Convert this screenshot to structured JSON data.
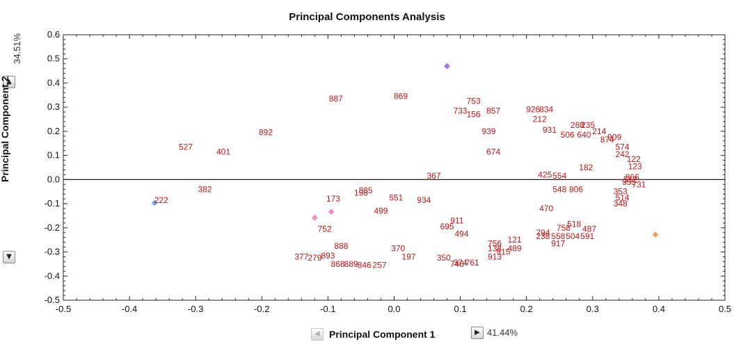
{
  "chart_data": {
    "type": "scatter",
    "title": "Principal Components Analysis",
    "xlabel": "Principal Component 1",
    "ylabel": "Principal Component 2",
    "x_variance": "41.44%",
    "y_variance": "34.51%",
    "xlim": [
      -0.5,
      0.5
    ],
    "ylim": [
      -0.5,
      0.6
    ],
    "xticks": [
      "-0.5",
      "-0.4",
      "-0.3",
      "-0.2",
      "-0.1",
      "0.0",
      "0.1",
      "0.2",
      "0.3",
      "0.4",
      "0.5"
    ],
    "yticks": [
      "0.6",
      "0.5",
      "0.4",
      "0.3",
      "0.2",
      "0.1",
      "0.0",
      "-0.1",
      "-0.2",
      "-0.3",
      "-0.4",
      "-0.5"
    ],
    "label_color": "#cc1111",
    "labels": [
      {
        "t": "887",
        "x": -0.088,
        "y": 0.335
      },
      {
        "t": "869",
        "x": 0.01,
        "y": 0.345
      },
      {
        "t": "753",
        "x": 0.12,
        "y": 0.325
      },
      {
        "t": "733",
        "x": 0.1,
        "y": 0.285
      },
      {
        "t": "156",
        "x": 0.12,
        "y": 0.27
      },
      {
        "t": "857",
        "x": 0.15,
        "y": 0.285
      },
      {
        "t": "926",
        "x": 0.21,
        "y": 0.29
      },
      {
        "t": "834",
        "x": 0.23,
        "y": 0.29
      },
      {
        "t": "212",
        "x": 0.22,
        "y": 0.25
      },
      {
        "t": "939",
        "x": 0.143,
        "y": 0.2
      },
      {
        "t": "931",
        "x": 0.235,
        "y": 0.205
      },
      {
        "t": "506",
        "x": 0.262,
        "y": 0.185
      },
      {
        "t": "640",
        "x": 0.287,
        "y": 0.185
      },
      {
        "t": "288",
        "x": 0.277,
        "y": 0.225
      },
      {
        "t": "235",
        "x": 0.293,
        "y": 0.225
      },
      {
        "t": "214",
        "x": 0.31,
        "y": 0.2
      },
      {
        "t": "874",
        "x": 0.322,
        "y": 0.165
      },
      {
        "t": "909",
        "x": 0.333,
        "y": 0.175
      },
      {
        "t": "574",
        "x": 0.345,
        "y": 0.135
      },
      {
        "t": "242",
        "x": 0.345,
        "y": 0.105
      },
      {
        "t": "122",
        "x": 0.362,
        "y": 0.085
      },
      {
        "t": "123",
        "x": 0.364,
        "y": 0.055
      },
      {
        "t": "892",
        "x": -0.194,
        "y": 0.195
      },
      {
        "t": "527",
        "x": -0.315,
        "y": 0.135
      },
      {
        "t": "401",
        "x": -0.258,
        "y": 0.115
      },
      {
        "t": "674",
        "x": 0.15,
        "y": 0.115
      },
      {
        "t": "182",
        "x": 0.29,
        "y": 0.05
      },
      {
        "t": "425",
        "x": 0.228,
        "y": 0.02
      },
      {
        "t": "554",
        "x": 0.25,
        "y": 0.015
      },
      {
        "t": "367",
        "x": 0.06,
        "y": 0.015
      },
      {
        "t": "382",
        "x": -0.286,
        "y": -0.04
      },
      {
        "t": "222",
        "x": -0.352,
        "y": -0.085
      },
      {
        "t": "173",
        "x": -0.092,
        "y": -0.08
      },
      {
        "t": "198",
        "x": -0.05,
        "y": -0.055
      },
      {
        "t": "885",
        "x": -0.043,
        "y": -0.045
      },
      {
        "t": "551",
        "x": 0.003,
        "y": -0.075
      },
      {
        "t": "934",
        "x": 0.045,
        "y": -0.085
      },
      {
        "t": "548",
        "x": 0.25,
        "y": -0.04
      },
      {
        "t": "806",
        "x": 0.275,
        "y": -0.04
      },
      {
        "t": "499",
        "x": -0.02,
        "y": -0.13
      },
      {
        "t": "752",
        "x": -0.105,
        "y": -0.205
      },
      {
        "t": "911",
        "x": 0.095,
        "y": -0.17
      },
      {
        "t": "695",
        "x": 0.08,
        "y": -0.195
      },
      {
        "t": "494",
        "x": 0.102,
        "y": -0.225
      },
      {
        "t": "470",
        "x": 0.23,
        "y": -0.12
      },
      {
        "t": "518",
        "x": 0.272,
        "y": -0.185
      },
      {
        "t": "758",
        "x": 0.256,
        "y": -0.2
      },
      {
        "t": "487",
        "x": 0.295,
        "y": -0.205
      },
      {
        "t": "794",
        "x": 0.225,
        "y": -0.22
      },
      {
        "t": "238",
        "x": 0.225,
        "y": -0.235
      },
      {
        "t": "558",
        "x": 0.248,
        "y": -0.235
      },
      {
        "t": "504",
        "x": 0.27,
        "y": -0.235
      },
      {
        "t": "591",
        "x": 0.292,
        "y": -0.235
      },
      {
        "t": "917",
        "x": 0.248,
        "y": -0.265
      },
      {
        "t": "121",
        "x": 0.182,
        "y": -0.25
      },
      {
        "t": "489",
        "x": 0.182,
        "y": -0.285
      },
      {
        "t": "756",
        "x": 0.152,
        "y": -0.265
      },
      {
        "t": "138",
        "x": 0.152,
        "y": -0.285
      },
      {
        "t": "915",
        "x": 0.165,
        "y": -0.3
      },
      {
        "t": "913",
        "x": 0.152,
        "y": -0.32
      },
      {
        "t": "888",
        "x": -0.08,
        "y": -0.275
      },
      {
        "t": "370",
        "x": 0.006,
        "y": -0.285
      },
      {
        "t": "197",
        "x": 0.022,
        "y": -0.32
      },
      {
        "t": "377",
        "x": -0.14,
        "y": -0.32
      },
      {
        "t": "279",
        "x": -0.12,
        "y": -0.325
      },
      {
        "t": "893",
        "x": -0.1,
        "y": -0.315
      },
      {
        "t": "868",
        "x": -0.085,
        "y": -0.35
      },
      {
        "t": "889",
        "x": -0.065,
        "y": -0.35
      },
      {
        "t": "846",
        "x": -0.045,
        "y": -0.355
      },
      {
        "t": "257",
        "x": -0.022,
        "y": -0.355
      },
      {
        "t": "350",
        "x": 0.075,
        "y": -0.325
      },
      {
        "t": "374",
        "x": 0.1,
        "y": -0.345
      },
      {
        "t": "761",
        "x": 0.118,
        "y": -0.345
      },
      {
        "t": "746",
        "x": 0.095,
        "y": -0.35
      },
      {
        "t": "348",
        "x": 0.342,
        "y": -0.1
      },
      {
        "t": "353",
        "x": 0.342,
        "y": -0.05
      },
      {
        "t": "514",
        "x": 0.345,
        "y": -0.075
      },
      {
        "t": "955",
        "x": 0.355,
        "y": -0.01
      },
      {
        "t": "866",
        "x": 0.36,
        "y": 0.01
      },
      {
        "t": "731",
        "x": 0.37,
        "y": -0.02
      },
      {
        "t": "512",
        "x": 0.357,
        "y": 0.0
      }
    ],
    "markers": [
      {
        "x": 0.08,
        "y": 0.47,
        "color": "#a57ae0"
      },
      {
        "x": -0.362,
        "y": -0.097,
        "color": "#6fa8e8"
      },
      {
        "x": -0.12,
        "y": -0.158,
        "color": "#f090c0"
      },
      {
        "x": -0.095,
        "y": -0.133,
        "color": "#f090c0"
      },
      {
        "x": 0.395,
        "y": -0.228,
        "color": "#f5a050"
      }
    ]
  }
}
